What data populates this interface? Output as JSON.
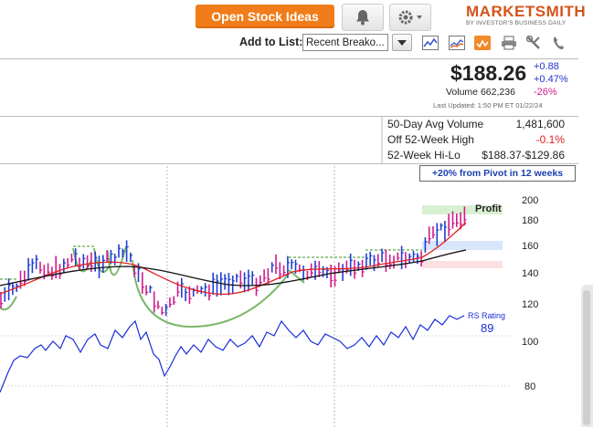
{
  "toolbar": {
    "open_stock_ideas": "Open Stock Ideas",
    "bell_icon": "bell-icon",
    "gear_icon": "gear-icon"
  },
  "brand": {
    "name_prefix": "M",
    "name": "ARKETSMITH",
    "tagline": "BY INVESTOR'S BUSINESS DAILY",
    "color": "#d4541b"
  },
  "list_bar": {
    "label": "Add to List:",
    "selected_list": "Recent Breako...",
    "icons": [
      "chart-icon",
      "compare-chart-icon",
      "alert-icon",
      "print-icon",
      "tools-icon",
      "phone-icon"
    ]
  },
  "quote": {
    "price": "$188.26",
    "change": "+0.88",
    "change_pct": "+0.47%",
    "volume_label": "Volume",
    "volume": "662,236",
    "volume_change": "-26%",
    "last_updated": "Last Updated: 1:50 PM ET 01/22/24"
  },
  "stats": [
    {
      "label": "50-Day Avg Volume",
      "value": "1,481,600"
    },
    {
      "label": "Off 52-Week High",
      "value": "-0.1%"
    },
    {
      "label": "52-Week Hi-Lo",
      "value": "$188.37-$129.86"
    }
  ],
  "pivot_badge": "+20% from Pivot in 12 weeks",
  "chart": {
    "y_ticks": [
      "200",
      "180",
      "160",
      "140",
      "120",
      "100",
      "80"
    ],
    "profit_label": "Profit",
    "rs_label": "RS Rating",
    "rs_value": "89",
    "colors": {
      "up": "#1f3fd1",
      "down": "#d01b8a",
      "ma_short": "#e02020",
      "ma_long": "#111111",
      "rs_line": "#1a2fd6",
      "base": "#6aaa55"
    }
  }
}
